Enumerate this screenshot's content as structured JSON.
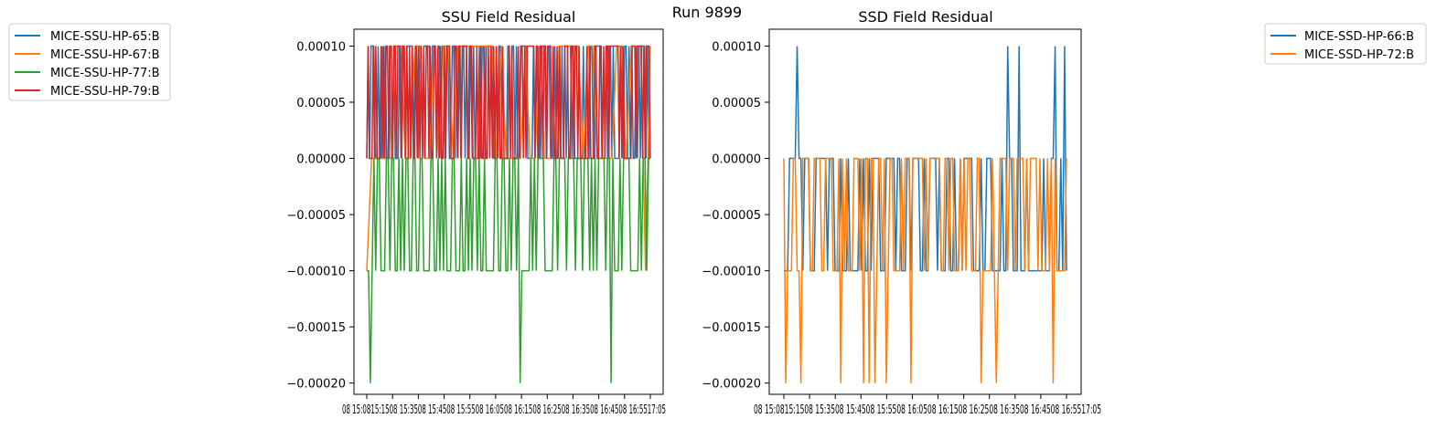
{
  "suptitle": "Run 9899",
  "colors": {
    "blue": "#1f77b4",
    "orange": "#ff7f0e",
    "green": "#2ca02c",
    "red": "#d62728"
  },
  "chart_data": [
    {
      "type": "line",
      "title": "SSU Field Residual",
      "xlabel": "",
      "ylabel": "",
      "ylim": [
        -0.00021,
        0.000115
      ],
      "yticks": [
        "0.00010",
        "0.00005",
        "0.00000",
        "−0.00005",
        "−0.00010",
        "−0.00015",
        "−0.00020"
      ],
      "ytick_values": [
        0.0001,
        5e-05,
        0,
        -5e-05,
        -0.0001,
        -0.00015,
        -0.0002
      ],
      "xticks_overlapping": "08 15:0815:1508 15:3508 15:4508 15:5508 16:0508 16:1508 16:2508 16:3508 16:4508 16:5517:05",
      "x_range": [
        "08 15:05",
        "08 17:05"
      ],
      "legend_placement": "outside-left",
      "series": [
        {
          "name": "MICE-SSU-HP-65:B",
          "color": "#1f77b4",
          "value_levels": [
            0.0001,
            0
          ],
          "description_of_pattern": "rapid toggling between 0 and 0.00010"
        },
        {
          "name": "MICE-SSU-HP-67:B",
          "color": "#ff7f0e",
          "value_levels": [
            0.0001,
            0,
            -0.0001
          ]
        },
        {
          "name": "MICE-SSU-HP-77:B",
          "color": "#2ca02c",
          "value_levels": [
            0,
            -0.0001,
            -0.0002
          ]
        },
        {
          "name": "MICE-SSU-HP-79:B",
          "color": "#d62728",
          "value_levels": [
            0.0001,
            0
          ]
        }
      ]
    },
    {
      "type": "line",
      "title": "SSD Field Residual",
      "xlabel": "",
      "ylabel": "",
      "ylim": [
        -0.00021,
        0.000115
      ],
      "yticks": [
        "0.00010",
        "0.00005",
        "0.00000",
        "−0.00005",
        "−0.00010",
        "−0.00015",
        "−0.00020"
      ],
      "ytick_values": [
        0.0001,
        5e-05,
        0,
        -5e-05,
        -0.0001,
        -0.00015,
        -0.0002
      ],
      "xticks_overlapping": "08 15:0815:1508 15:3508 15:4508 15:5508 16:0508 16:1508 16:2508 16:3508 16:4508 16:5517:05",
      "x_range": [
        "08 15:05",
        "08 17:05"
      ],
      "legend_placement": "outside-right",
      "series": [
        {
          "name": "MICE-SSD-HP-66:B",
          "color": "#1f77b4",
          "value_levels": [
            0.0001,
            0,
            -0.0001
          ]
        },
        {
          "name": "MICE-SSD-HP-72:B",
          "color": "#ff7f0e",
          "value_levels": [
            0,
            -0.0001,
            -0.0002
          ]
        }
      ]
    }
  ]
}
